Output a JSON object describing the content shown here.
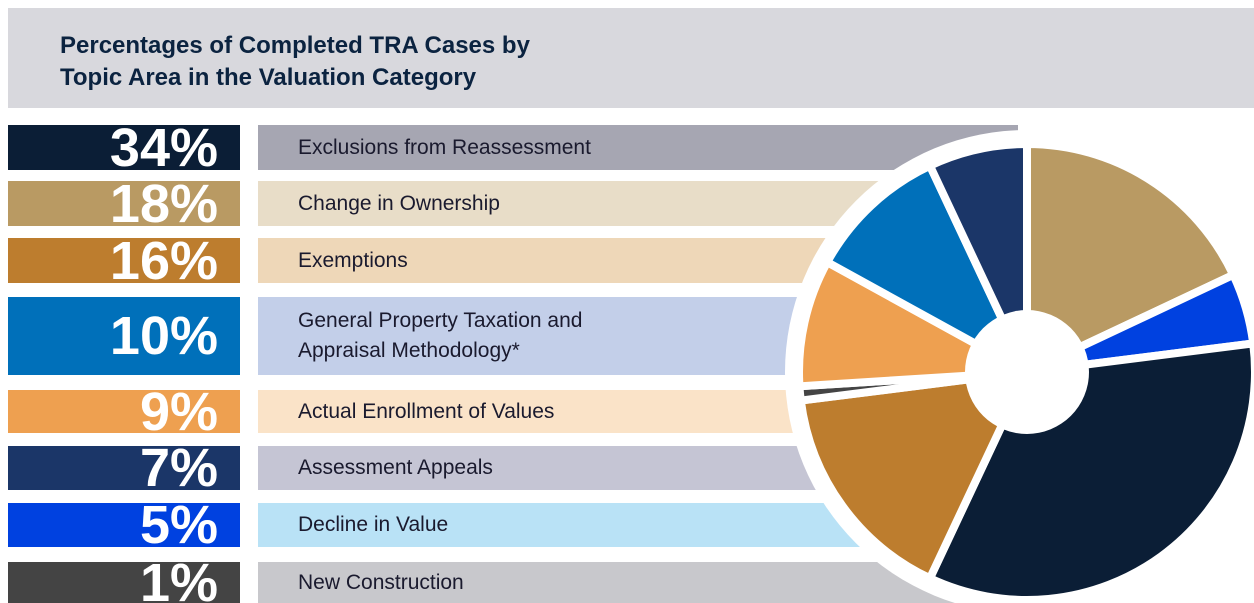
{
  "chart_data": {
    "type": "pie",
    "title": [
      "Percentages of Completed TRA Cases by",
      "Topic Area in the Valuation Category"
    ],
    "categories": [
      "Exclusions from Reassessment",
      "Change in Ownership",
      "Exemptions",
      "General Property Taxation and Appraisal Methodology*",
      "Actual Enrollment of Values",
      "Assessment Appeals",
      "Decline in Value",
      "New Construction"
    ],
    "values": [
      34,
      18,
      16,
      10,
      9,
      7,
      5,
      1
    ],
    "value_labels": [
      "34%",
      "18%",
      "16%",
      "10%",
      "9%",
      "7%",
      "5%",
      "1%"
    ],
    "colors": [
      "#0b1e36",
      "#b99a63",
      "#bd7d2e",
      "#0070ba",
      "#eea050",
      "#1b3668",
      "#0041e0",
      "#444444"
    ]
  }
}
